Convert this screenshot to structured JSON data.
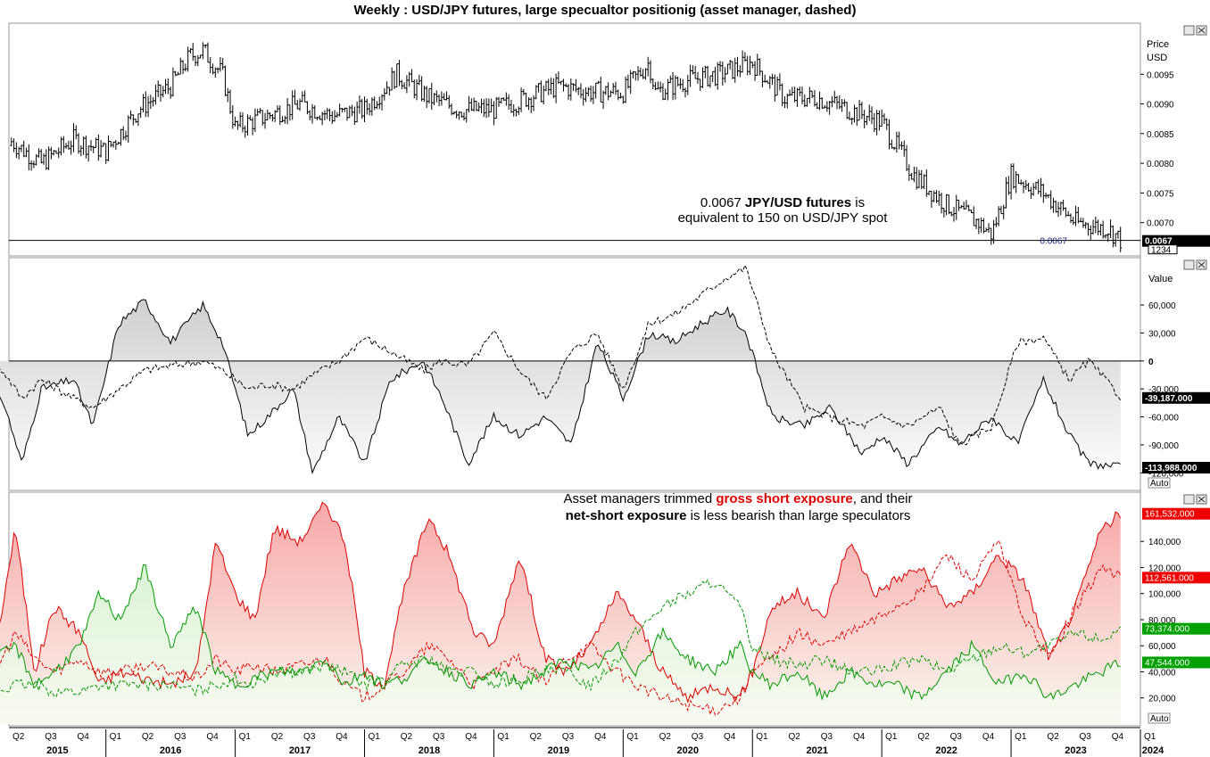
{
  "title": "Weekly : USD/JPY futures, large specualtor positionig (asset manager, dashed)",
  "chart_data": [
    {
      "type": "candlestick",
      "panel": "price",
      "ylabel": "Price\nUSD",
      "ylim": [
        0.0065,
        0.0103
      ],
      "yticks": [
        "0.0095",
        "0.0090",
        "0.0085",
        "0.0080",
        "0.0075",
        "0.0070"
      ],
      "last_value_label": "0.0067",
      "sub_label": "1234",
      "hline_value": 0.0067,
      "hline_label": "0.0067",
      "annotation": {
        "value": "0.0067",
        "bold": "JPY/USD futures",
        "rest": "is",
        "line2": "equivalent to 150 on USD/JPY spot"
      },
      "x": [
        2015.0,
        2015.25,
        2015.5,
        2015.75,
        2016.0,
        2016.25,
        2016.5,
        2016.65,
        2016.75,
        2016.9,
        2017.0,
        2017.25,
        2017.5,
        2017.75,
        2018.0,
        2018.25,
        2018.5,
        2018.75,
        2019.0,
        2019.25,
        2019.5,
        2019.75,
        2020.0,
        2020.2,
        2020.25,
        2020.5,
        2020.75,
        2021.0,
        2021.25,
        2021.5,
        2021.75,
        2022.0,
        2022.25,
        2022.5,
        2022.75,
        2022.85,
        2023.0,
        2023.25,
        2023.5,
        2023.75,
        2023.85
      ],
      "y": [
        0.0083,
        0.0084,
        0.008,
        0.0084,
        0.0082,
        0.0089,
        0.0093,
        0.0098,
        0.0099,
        0.0095,
        0.0086,
        0.0088,
        0.009,
        0.0088,
        0.0089,
        0.0095,
        0.0091,
        0.0089,
        0.0089,
        0.0091,
        0.0093,
        0.0092,
        0.0092,
        0.0097,
        0.0092,
        0.0094,
        0.0095,
        0.0097,
        0.0091,
        0.0091,
        0.0089,
        0.0087,
        0.0078,
        0.0073,
        0.007,
        0.0068,
        0.0078,
        0.0075,
        0.007,
        0.0069,
        0.0067
      ]
    },
    {
      "type": "area",
      "panel": "net-positioning",
      "ylabel": "Value",
      "ylim": [
        -135000,
        105000
      ],
      "yticks": [
        "60,000",
        "30,000",
        "0",
        "-30,000",
        "-60,000",
        "-90,000",
        "-120,000"
      ],
      "last_value_labels": [
        "-39,187.000",
        "-113,988.000"
      ],
      "auto_label": "Auto",
      "x": [
        2015.0,
        2015.2,
        2015.35,
        2015.5,
        2015.75,
        2015.9,
        2016.1,
        2016.3,
        2016.5,
        2016.75,
        2016.9,
        2017.1,
        2017.25,
        2017.45,
        2017.6,
        2017.8,
        2018.0,
        2018.2,
        2018.45,
        2018.6,
        2018.8,
        2019.0,
        2019.2,
        2019.4,
        2019.6,
        2019.8,
        2020.0,
        2020.2,
        2020.4,
        2020.6,
        2020.8,
        2020.95,
        2021.15,
        2021.4,
        2021.6,
        2021.85,
        2022.0,
        2022.2,
        2022.45,
        2022.6,
        2022.85,
        2023.05,
        2023.25,
        2023.45,
        2023.6,
        2023.85
      ],
      "series": [
        {
          "name": "large speculators",
          "style": "solid",
          "values": [
            -50000,
            -40000,
            -110000,
            -30000,
            -20000,
            -70000,
            40000,
            65000,
            20000,
            60000,
            20000,
            -80000,
            -60000,
            -30000,
            -120000,
            -60000,
            -110000,
            -20000,
            0,
            -40000,
            -110000,
            -60000,
            -80000,
            -60000,
            -90000,
            20000,
            -40000,
            30000,
            20000,
            40000,
            55000,
            30000,
            -60000,
            -70000,
            -50000,
            -100000,
            -80000,
            -110000,
            -70000,
            -90000,
            -60000,
            -90000,
            -20000,
            -80000,
            -110000,
            -113988
          ]
        },
        {
          "name": "asset manager",
          "style": "dashed",
          "values": [
            0,
            -10000,
            -40000,
            -20000,
            -40000,
            -50000,
            -30000,
            -10000,
            -5000,
            0,
            -10000,
            -30000,
            -25000,
            -30000,
            -15000,
            0,
            25000,
            10000,
            -10000,
            0,
            -5000,
            30000,
            -10000,
            -40000,
            10000,
            30000,
            -30000,
            40000,
            50000,
            70000,
            90000,
            100000,
            10000,
            -50000,
            -60000,
            -70000,
            -60000,
            -70000,
            -50000,
            -90000,
            -70000,
            20000,
            25000,
            -20000,
            0,
            -39187
          ]
        }
      ]
    },
    {
      "type": "area",
      "panel": "gross-positioning",
      "ylabel": "Value",
      "ylim": [
        0,
        175000
      ],
      "yticks": [
        "140,000",
        "120,000",
        "100,000",
        "80,000",
        "60,000",
        "40,000",
        "20,000"
      ],
      "last_value_labels": [
        "161,532.000",
        "112,561.000",
        "73,374.000",
        "47,544.000"
      ],
      "last_value_colors": [
        "#ee0000",
        "#ee0000",
        "#00a000",
        "#00a000"
      ],
      "auto_label": "Auto",
      "annotation": {
        "line1_pre": "Asset managers trimmed ",
        "line1_red": "gross short exposure",
        "line1_post": ", and their",
        "line2_bold": "net-short exposure",
        "line2_post": " is less bearish than large speculators"
      },
      "x": [
        2015.0,
        2015.15,
        2015.3,
        2015.45,
        2015.6,
        2015.8,
        2015.95,
        2016.1,
        2016.3,
        2016.5,
        2016.7,
        2016.85,
        2017.0,
        2017.15,
        2017.3,
        2017.5,
        2017.7,
        2017.85,
        2018.0,
        2018.15,
        2018.3,
        2018.5,
        2018.65,
        2018.85,
        2019.0,
        2019.2,
        2019.4,
        2019.55,
        2019.75,
        2019.95,
        2020.1,
        2020.3,
        2020.5,
        2020.7,
        2020.9,
        2021.0,
        2021.15,
        2021.35,
        2021.55,
        2021.75,
        2021.95,
        2022.1,
        2022.3,
        2022.5,
        2022.7,
        2022.9,
        2023.1,
        2023.3,
        2023.5,
        2023.7,
        2023.85
      ],
      "series": [
        {
          "name": "gross short (large spec)",
          "color": "#dd0000",
          "style": "solid",
          "values": [
            70000,
            60000,
            150000,
            40000,
            90000,
            70000,
            30000,
            40000,
            35000,
            30000,
            40000,
            140000,
            100000,
            80000,
            150000,
            140000,
            170000,
            140000,
            40000,
            30000,
            100000,
            160000,
            130000,
            70000,
            60000,
            130000,
            50000,
            40000,
            60000,
            100000,
            80000,
            40000,
            20000,
            30000,
            20000,
            40000,
            90000,
            100000,
            80000,
            140000,
            100000,
            110000,
            120000,
            90000,
            100000,
            130000,
            110000,
            50000,
            90000,
            150000,
            161532
          ]
        },
        {
          "name": "gross short (asset manager)",
          "color": "#dd0000",
          "style": "dashed",
          "values": [
            30000,
            40000,
            70000,
            50000,
            40000,
            50000,
            40000,
            40000,
            45000,
            40000,
            35000,
            50000,
            40000,
            45000,
            40000,
            45000,
            50000,
            30000,
            20000,
            30000,
            40000,
            60000,
            50000,
            30000,
            40000,
            50000,
            30000,
            50000,
            60000,
            40000,
            30000,
            20000,
            15000,
            10000,
            20000,
            40000,
            50000,
            70000,
            60000,
            70000,
            80000,
            90000,
            100000,
            130000,
            110000,
            140000,
            80000,
            50000,
            90000,
            120000,
            112561
          ]
        },
        {
          "name": "gross long (large spec)",
          "color": "#009900",
          "style": "solid",
          "values": [
            30000,
            50000,
            60000,
            30000,
            40000,
            60000,
            100000,
            80000,
            120000,
            60000,
            90000,
            40000,
            30000,
            35000,
            40000,
            40000,
            50000,
            30000,
            40000,
            30000,
            35000,
            50000,
            40000,
            30000,
            40000,
            30000,
            40000,
            50000,
            40000,
            60000,
            40000,
            70000,
            50000,
            40000,
            60000,
            40000,
            30000,
            40000,
            20000,
            40000,
            30000,
            30000,
            20000,
            40000,
            60000,
            30000,
            40000,
            20000,
            30000,
            40000,
            47544
          ]
        },
        {
          "name": "gross long (asset manager)",
          "color": "#009900",
          "style": "dashed",
          "values": [
            30000,
            25000,
            30000,
            30000,
            25000,
            25000,
            30000,
            30000,
            30000,
            30000,
            25000,
            30000,
            35000,
            30000,
            40000,
            40000,
            45000,
            40000,
            30000,
            35000,
            45000,
            50000,
            40000,
            40000,
            30000,
            35000,
            40000,
            40000,
            30000,
            50000,
            70000,
            90000,
            100000,
            110000,
            90000,
            60000,
            50000,
            45000,
            50000,
            40000,
            40000,
            45000,
            50000,
            40000,
            50000,
            60000,
            55000,
            60000,
            70000,
            65000,
            73374
          ]
        }
      ]
    }
  ],
  "x_axis": {
    "quarters": [
      "Q2",
      "Q3",
      "Q4",
      "Q1",
      "Q2",
      "Q3",
      "Q4",
      "Q1",
      "Q2",
      "Q3",
      "Q4",
      "Q1",
      "Q2",
      "Q3",
      "Q4",
      "Q1",
      "Q2",
      "Q3",
      "Q4",
      "Q1",
      "Q2",
      "Q3",
      "Q4",
      "Q1",
      "Q2",
      "Q3",
      "Q4",
      "Q1",
      "Q2",
      "Q3",
      "Q4",
      "Q1",
      "Q2",
      "Q3",
      "Q4",
      "Q1"
    ],
    "years": [
      "2015",
      "2016",
      "2017",
      "2018",
      "2019",
      "2020",
      "2021",
      "2022",
      "2023",
      "2024"
    ],
    "start": 2015.25,
    "end": 2024.0
  }
}
